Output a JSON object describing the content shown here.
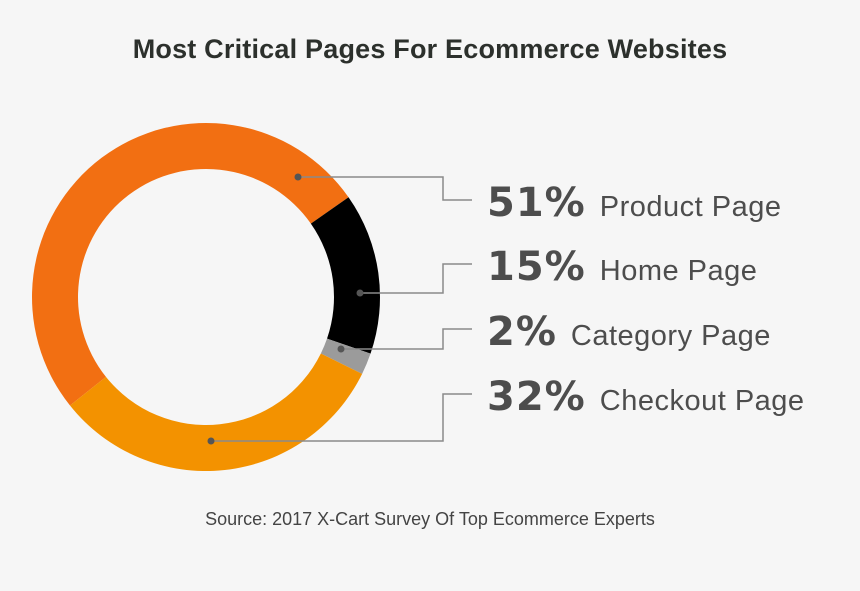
{
  "chart_data": {
    "type": "pie",
    "title": "Most Critical Pages For Ecommerce Websites",
    "categories": [
      "Product Page",
      "Home Page",
      "Category Page",
      "Checkout Page"
    ],
    "values": [
      51,
      15,
      2,
      32
    ],
    "value_labels": [
      "51%",
      "15%",
      "2%",
      "32%"
    ],
    "colors": [
      "#f26f12",
      "#000000",
      "#9b9b9b",
      "#f39200"
    ],
    "source": "Source: 2017 X-Cart Survey Of Top Ecommerce Experts"
  }
}
